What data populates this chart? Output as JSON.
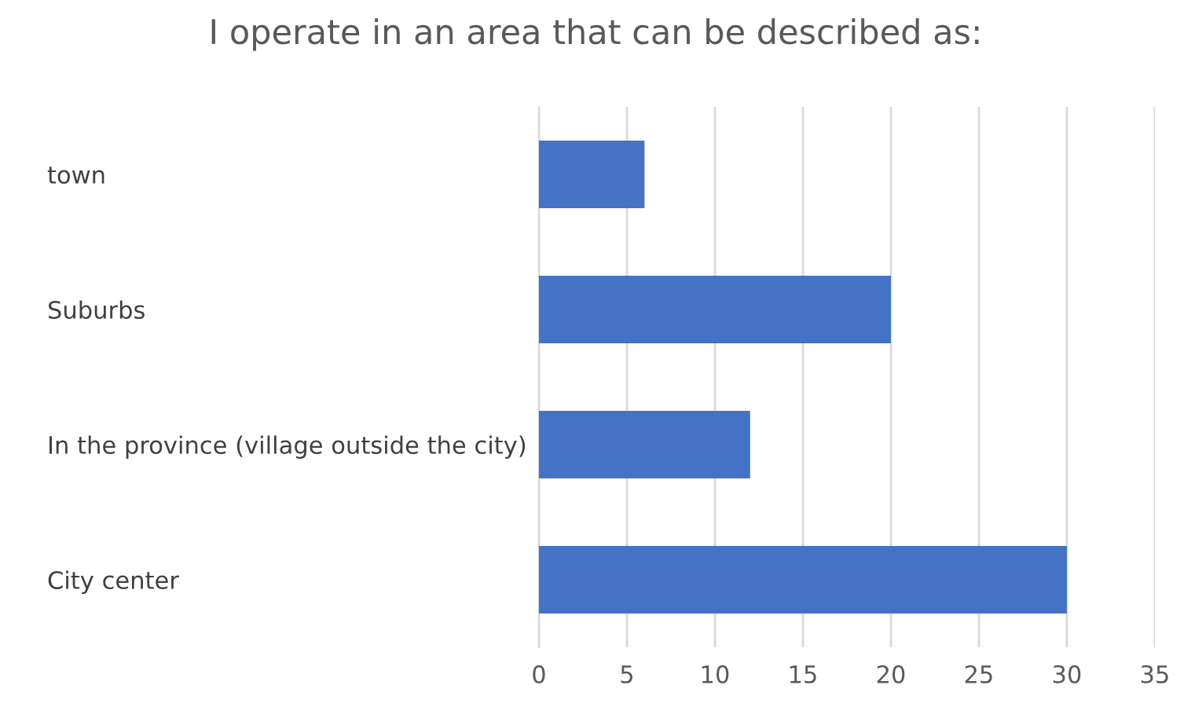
{
  "chart_data": {
    "type": "bar",
    "orientation": "horizontal",
    "title": "I operate in an area that can be described as:",
    "categories": [
      "town",
      "Suburbs",
      "In the province (village outside the city)",
      "City center"
    ],
    "values": [
      6,
      20,
      12,
      30
    ],
    "color": "#4472c4",
    "xlim": [
      0,
      35
    ],
    "xticks": [
      0,
      5,
      10,
      15,
      20,
      25,
      30,
      35
    ],
    "grid": "x"
  }
}
